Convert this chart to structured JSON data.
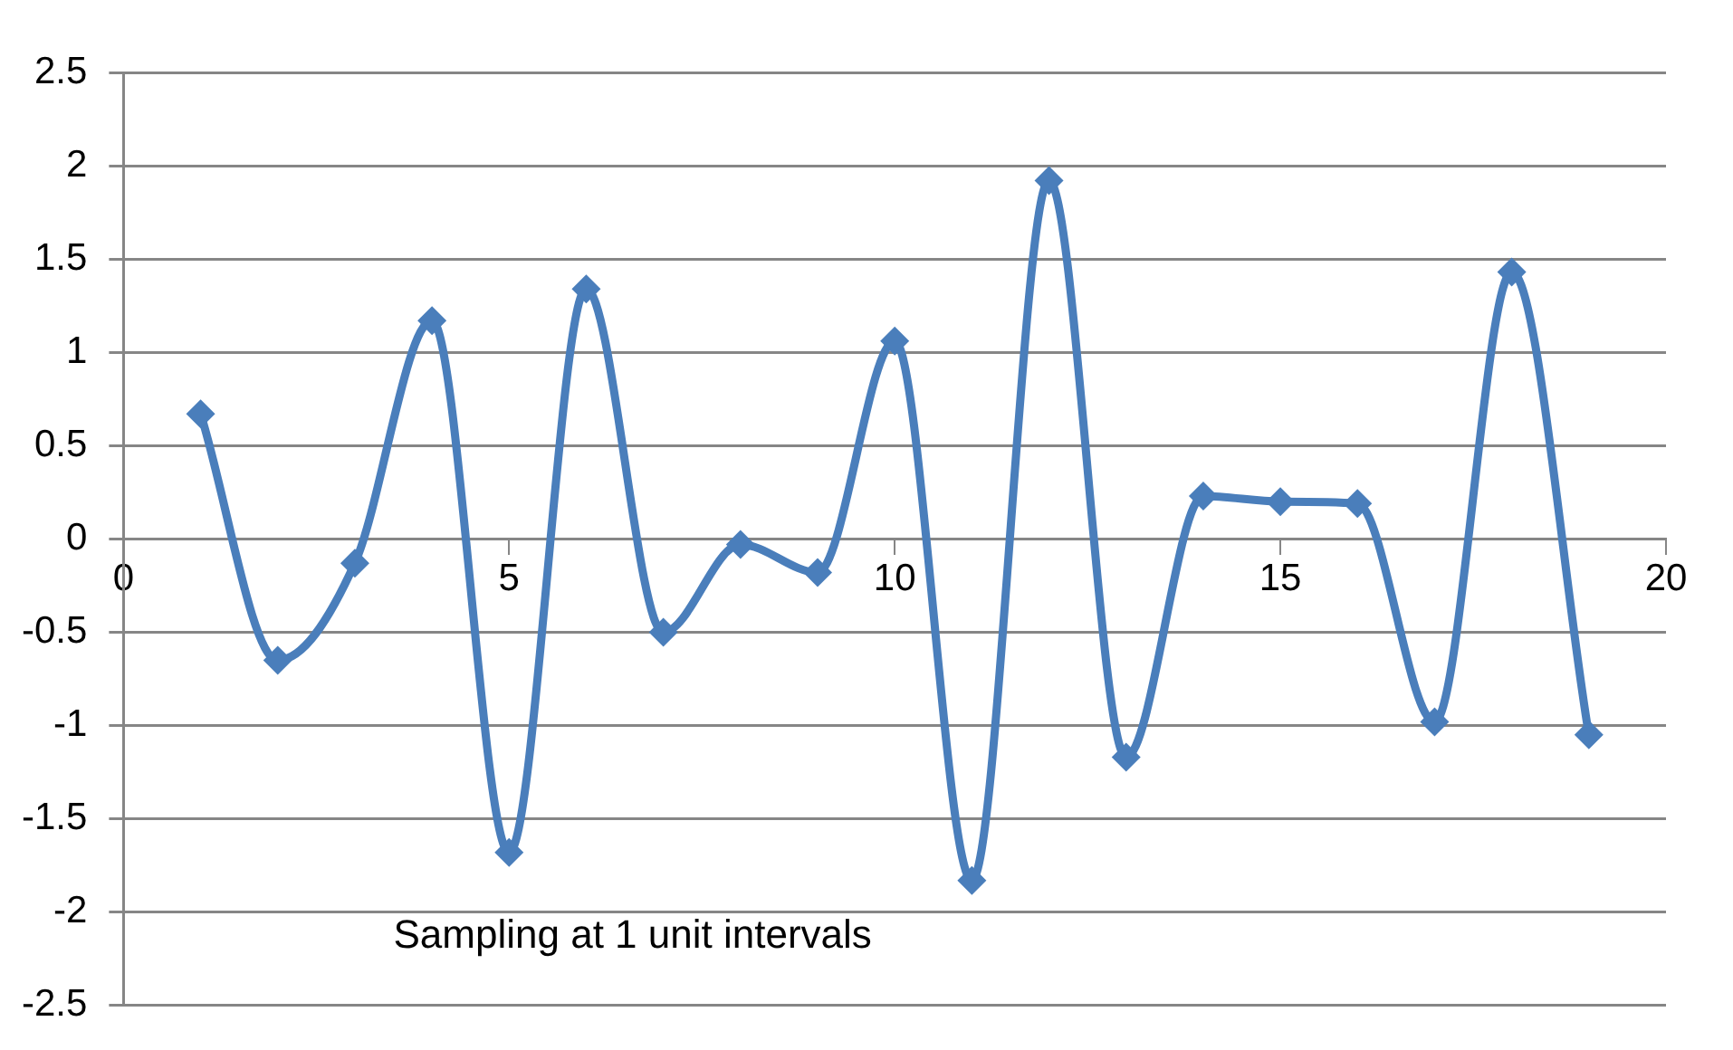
{
  "chart_data": {
    "type": "line",
    "x": [
      1,
      2,
      3,
      4,
      5,
      6,
      7,
      8,
      9,
      10,
      11,
      12,
      13,
      14,
      15,
      16,
      17,
      18,
      19
    ],
    "series": [
      {
        "color": "#4a7ebb",
        "values": [
          0.67,
          -0.65,
          -0.13,
          1.17,
          -1.68,
          1.34,
          -0.5,
          -0.03,
          -0.18,
          1.06,
          -1.83,
          1.92,
          -1.17,
          0.23,
          0.2,
          0.19,
          -0.98,
          1.43,
          -1.05
        ]
      }
    ],
    "xlim": [
      0,
      20
    ],
    "xticks": [
      0,
      5,
      10,
      15,
      20
    ],
    "ylim": [
      -2.5,
      2.5
    ],
    "yticks": [
      -2.5,
      -2,
      -1.5,
      -1,
      -0.5,
      0,
      0.5,
      1,
      1.5,
      2,
      2.5
    ],
    "grid": "y",
    "marker": "diamond",
    "line_style": "solid",
    "legend": false,
    "annotations": [
      "Sampling at 1 unit intervals"
    ]
  }
}
